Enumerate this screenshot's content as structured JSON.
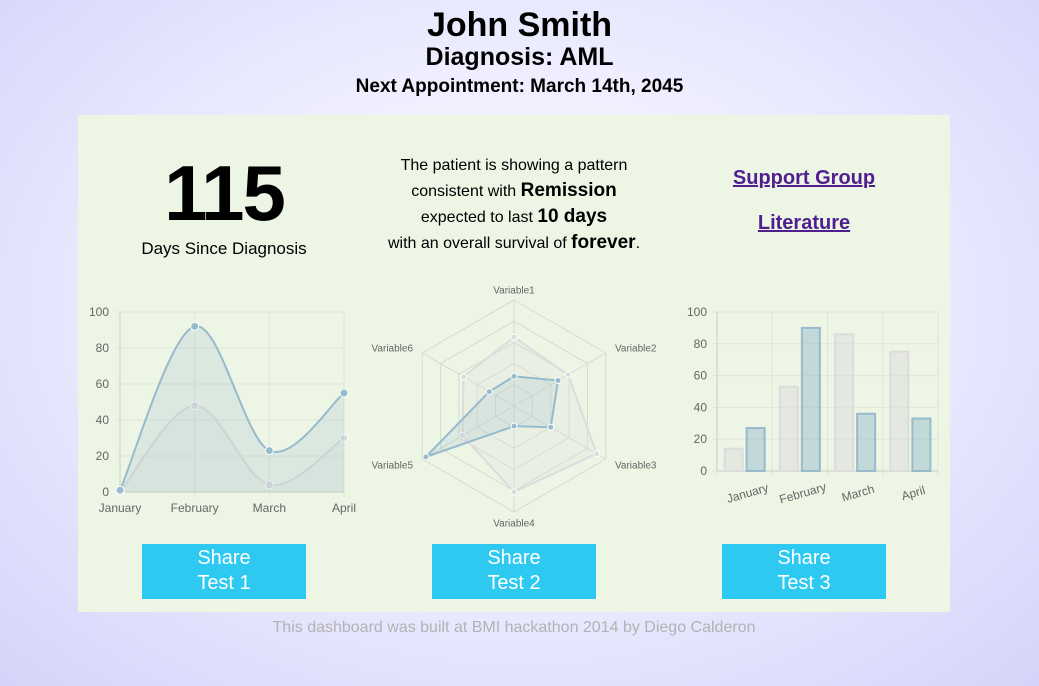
{
  "patient": {
    "name": "John Smith",
    "diagnosis": "Diagnosis: AML",
    "appointment": "Next Appointment: March 14th, 2045"
  },
  "stats": {
    "days": "115",
    "days_label": "Days Since Diagnosis"
  },
  "message": {
    "l1": "The patient is showing a pattern",
    "l2a": "consistent with ",
    "l2b": "Remission",
    "l3a": "expected to last ",
    "l3b": "10 days",
    "l4a": "with an overall survival of ",
    "l4b": "forever",
    "l4c": "."
  },
  "links": {
    "support": "Support Group",
    "literature": "Literature"
  },
  "buttons": [
    {
      "line1": "Share",
      "line2": "Test 1"
    },
    {
      "line1": "Share",
      "line2": "Test 2"
    },
    {
      "line1": "Share",
      "line2": "Test 3"
    }
  ],
  "footer": "This dashboard was built at BMI hackathon 2014 by Diego Calderon",
  "colors": {
    "panel": "#edf5e5",
    "button": "#2dc9f1",
    "link": "#4f1f90",
    "series_blue": "#97bbcd",
    "series_gray": "#dcdcdc"
  },
  "chart_data": [
    {
      "type": "line",
      "categories": [
        "January",
        "February",
        "March",
        "April"
      ],
      "ylim": [
        0,
        100
      ],
      "yticks": [
        "0",
        "20",
        "40",
        "60",
        "80",
        "100"
      ],
      "grid": true,
      "series": [
        {
          "values": [
            0,
            48,
            4,
            30
          ],
          "color": "#dcdcdc"
        },
        {
          "values": [
            1,
            92,
            23,
            55
          ],
          "color": "#97bbcd"
        }
      ]
    },
    {
      "type": "radar",
      "categories": [
        "Variable1",
        "Variable2",
        "Variable3",
        "Variable4",
        "Variable5",
        "Variable6"
      ],
      "rmax": 100,
      "series": [
        {
          "values": [
            65,
            59,
            90,
            81,
            56,
            55
          ],
          "color": "#dcdcdc"
        },
        {
          "values": [
            28,
            48,
            40,
            19,
            96,
            27
          ],
          "color": "#97bbcd"
        }
      ]
    },
    {
      "type": "bar",
      "categories": [
        "January",
        "February",
        "March",
        "April"
      ],
      "ylim": [
        0,
        100
      ],
      "yticks": [
        "0",
        "20",
        "40",
        "60",
        "80",
        "100"
      ],
      "grid": true,
      "series": [
        {
          "values": [
            14,
            53,
            86,
            75
          ],
          "color": "#dcdcdc"
        },
        {
          "values": [
            27,
            90,
            36,
            33
          ],
          "color": "#97bbcd"
        }
      ]
    }
  ]
}
